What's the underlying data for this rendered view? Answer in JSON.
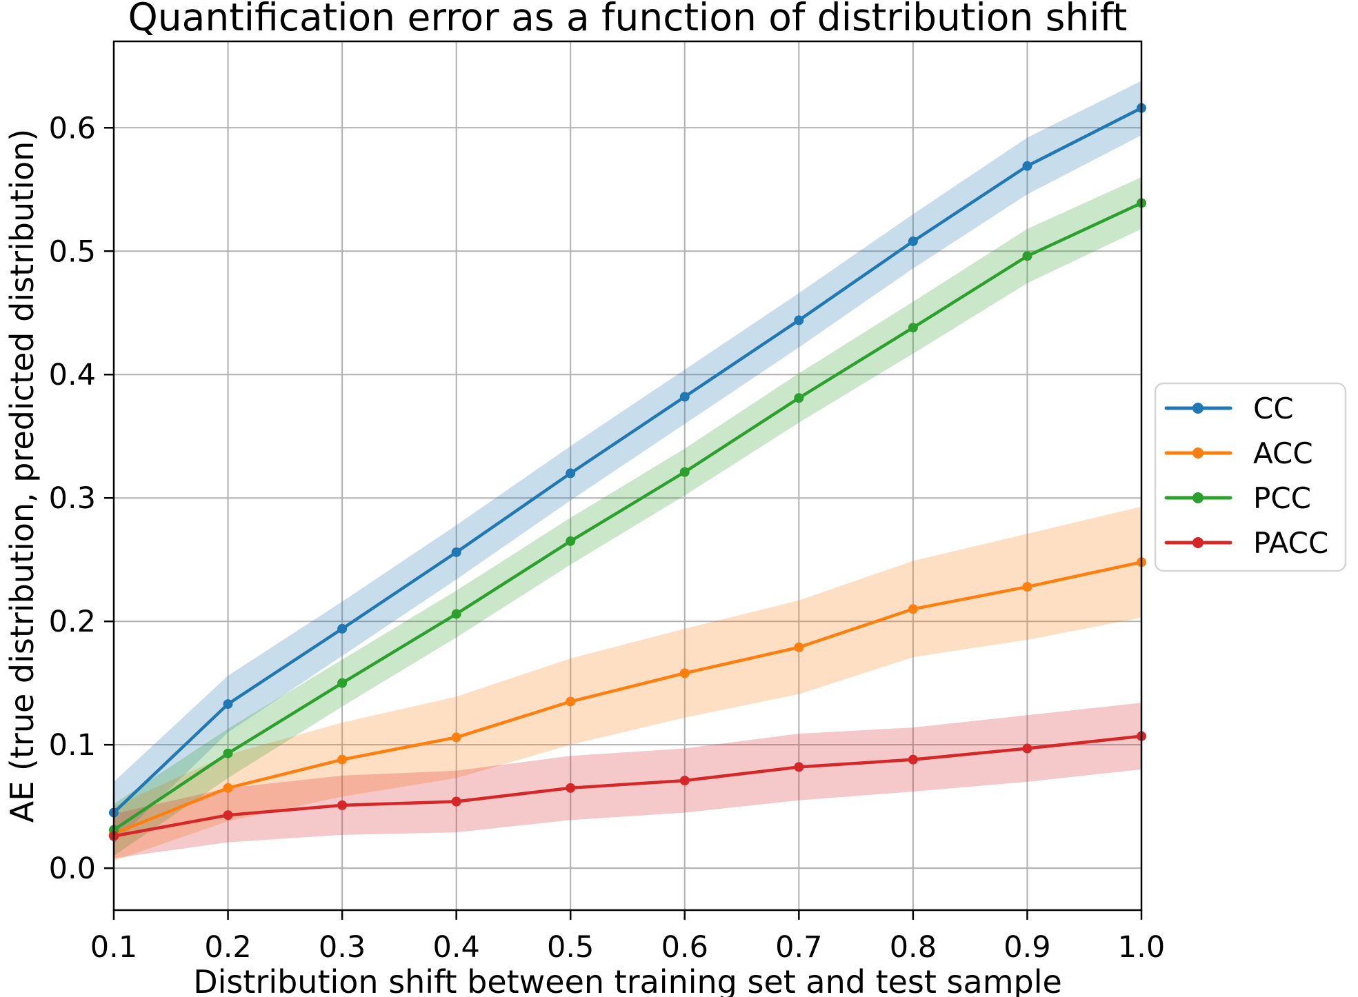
{
  "title": "Quantification error as a function of distribution shift",
  "xlabel": "Distribution shift between training set and test sample",
  "ylabel": "AE (true distribution, predicted distribution)",
  "chart_data": {
    "type": "line",
    "x": [
      0.1,
      0.2,
      0.3,
      0.4,
      0.5,
      0.6,
      0.7,
      0.8,
      0.9,
      1.0
    ],
    "series": [
      {
        "name": "CC",
        "color": "#1f77b4",
        "values": [
          0.045,
          0.133,
          0.194,
          0.256,
          0.32,
          0.382,
          0.444,
          0.508,
          0.569,
          0.616
        ],
        "band_halfwidth": [
          0.025,
          0.023,
          0.022,
          0.022,
          0.022,
          0.022,
          0.022,
          0.022,
          0.023,
          0.022
        ]
      },
      {
        "name": "ACC",
        "color": "#ff7f0e",
        "values": [
          0.028,
          0.065,
          0.088,
          0.106,
          0.135,
          0.158,
          0.179,
          0.21,
          0.228,
          0.248
        ],
        "band_halfwidth": [
          0.022,
          0.027,
          0.03,
          0.033,
          0.035,
          0.036,
          0.038,
          0.039,
          0.043,
          0.045
        ]
      },
      {
        "name": "PCC",
        "color": "#2ca02c",
        "values": [
          0.031,
          0.093,
          0.15,
          0.206,
          0.265,
          0.321,
          0.381,
          0.438,
          0.496,
          0.539
        ],
        "band_halfwidth": [
          0.021,
          0.02,
          0.019,
          0.019,
          0.019,
          0.019,
          0.02,
          0.021,
          0.022,
          0.021
        ]
      },
      {
        "name": "PACC",
        "color": "#d62728",
        "values": [
          0.026,
          0.043,
          0.051,
          0.054,
          0.065,
          0.071,
          0.082,
          0.088,
          0.097,
          0.107
        ],
        "band_halfwidth": [
          0.018,
          0.022,
          0.024,
          0.025,
          0.026,
          0.026,
          0.027,
          0.026,
          0.027,
          0.027
        ]
      }
    ],
    "xlim": [
      0.1,
      1.0
    ],
    "ylim": [
      -0.034,
      0.67
    ],
    "xticks": [
      0.1,
      0.2,
      0.3,
      0.4,
      0.5,
      0.6,
      0.7,
      0.8,
      0.9,
      1.0
    ],
    "yticks": [
      0.0,
      0.1,
      0.2,
      0.3,
      0.4,
      0.5,
      0.6
    ],
    "grid": true,
    "grid_color": "#b0b0b0",
    "band_opacity": 0.25,
    "legend_position": "center right, outside axes",
    "legend_entries": [
      "CC",
      "ACC",
      "PCC",
      "PACC"
    ]
  }
}
